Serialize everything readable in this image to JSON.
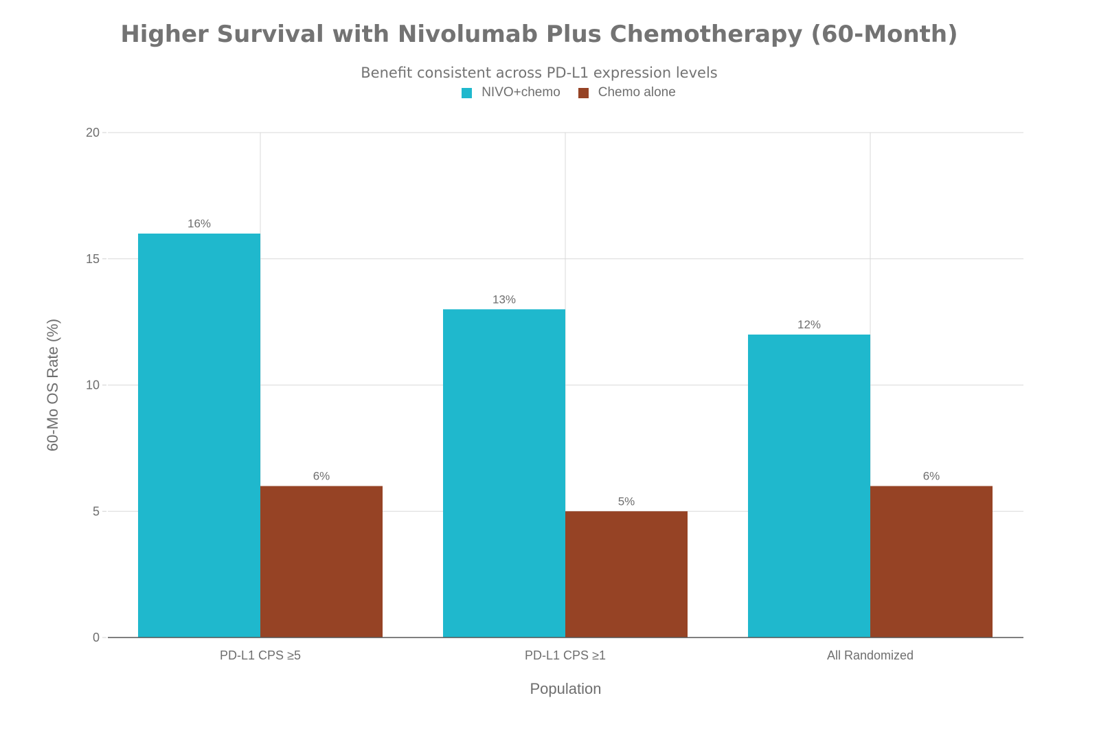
{
  "chart_data": {
    "type": "bar",
    "title": "Higher Survival with Nivolumab Plus Chemotherapy (60-Month)",
    "subtitle": "Benefit consistent across PD-L1 expression levels",
    "xlabel": "Population",
    "ylabel": "60-Mo OS Rate (%)",
    "ylim": [
      0,
      20
    ],
    "yticks": [
      "0",
      "5",
      "10",
      "15",
      "20"
    ],
    "grid": true,
    "legend_position": "top-center",
    "categories": [
      "PD-L1 CPS ≥5",
      "PD-L1 CPS ≥1",
      "All Randomized"
    ],
    "series": [
      {
        "name": "NIVO+chemo",
        "color": "#1FB8CD",
        "values": [
          16,
          13,
          12
        ],
        "labels": [
          "16%",
          "13%",
          "12%"
        ]
      },
      {
        "name": "Chemo alone",
        "color": "#964325",
        "values": [
          6,
          5,
          6
        ],
        "labels": [
          "6%",
          "5%",
          "6%"
        ]
      }
    ]
  }
}
